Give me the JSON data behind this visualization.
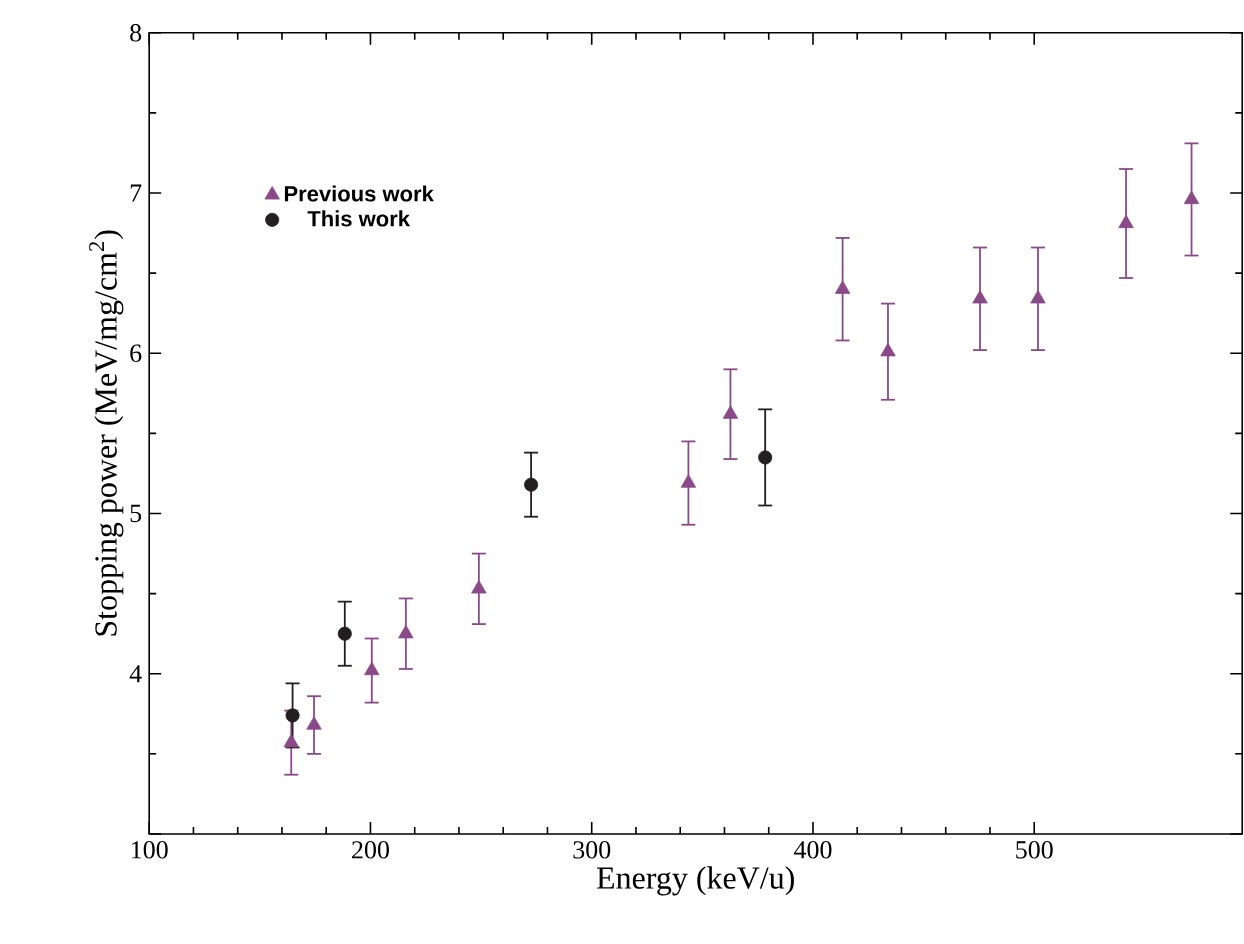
{
  "chart_data": {
    "type": "scatter",
    "xlabel": "Energy (keV/u)",
    "ylabel": "Stopping power (MeV/mg/cm$^{2}$)",
    "xlim": [
      100,
      594
    ],
    "ylim": [
      3,
      8
    ],
    "xticks": [
      100,
      200,
      300,
      400,
      500
    ],
    "yticks": [
      {
        "value": 3,
        "label": null
      },
      4,
      5,
      6,
      7,
      8
    ],
    "grid": false,
    "legend": "top left",
    "series": [
      {
        "name": "Previous work",
        "color": "#8a4a8a",
        "marker": "triangle",
        "x": [
          164.2,
          174.5,
          200.6,
          216,
          249,
          343.7,
          362.7,
          413.4,
          433.9,
          475.5,
          501.7,
          541.5,
          571.1
        ],
        "values": [
          3.57,
          3.68,
          4.02,
          4.25,
          4.53,
          5.19,
          5.62,
          6.4,
          6.01,
          6.34,
          6.34,
          6.81,
          6.96
        ],
        "errors": [
          0.2,
          0.18,
          0.2,
          0.22,
          0.22,
          0.26,
          0.28,
          0.32,
          0.3,
          0.32,
          0.32,
          0.34,
          0.35
        ]
      },
      {
        "name": "This work",
        "color": "#231f20",
        "marker": "circle",
        "x": [
          164.8,
          188.4,
          272.6,
          378.4
        ],
        "values": [
          3.74,
          4.25,
          5.18,
          5.35
        ],
        "errors": [
          0.2,
          0.2,
          0.2,
          0.3
        ]
      }
    ]
  }
}
